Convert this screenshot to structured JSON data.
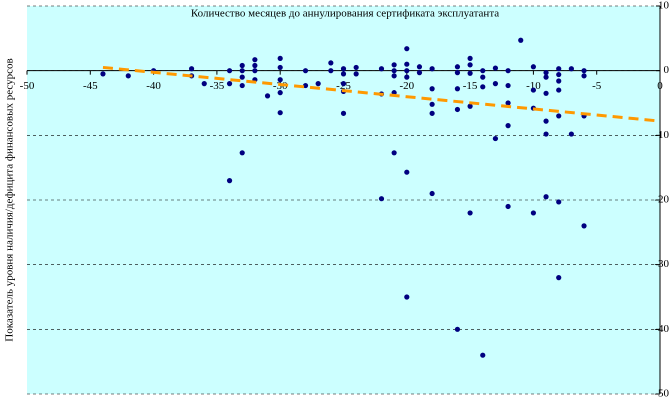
{
  "chart_data": {
    "type": "scatter",
    "title": "Количество месяцев до аннулирования сертификата эксплуатанта",
    "y_label": "Показатель уровня наличия/дефицита финансовых ресурсов",
    "color": "#000080",
    "background": "#ccffff",
    "grid": true,
    "xlim": [
      -50,
      0
    ],
    "xticks": [
      -50,
      -45,
      -40,
      -35,
      -30,
      -25,
      -20,
      -15,
      -10,
      -5,
      0
    ],
    "ylim": [
      -50,
      10
    ],
    "yticks": [
      10,
      0,
      -10,
      -20,
      -30,
      -40,
      -50
    ],
    "x": [
      -44,
      -42,
      -40,
      -37,
      -37,
      -36,
      -34,
      -34,
      -34,
      -33,
      -33,
      -33,
      -33,
      -33,
      -32,
      -32,
      -32,
      -32,
      -31,
      -30,
      -30,
      -30,
      -30,
      -30,
      -28,
      -28,
      -27,
      -26,
      -26,
      -25,
      -25,
      -25,
      -25,
      -25,
      -24,
      -24,
      -22,
      -22,
      -22,
      -21,
      -21,
      -21,
      -21,
      -21,
      -20,
      -20,
      -20,
      -20,
      -20,
      -20,
      -19,
      -19,
      -18,
      -18,
      -18,
      -18,
      -18,
      -16,
      -16,
      -16,
      -16,
      -16,
      -15,
      -15,
      -15,
      -15,
      -15,
      -14,
      -14,
      -14,
      -14,
      -13,
      -13,
      -13,
      -12,
      -12,
      -12,
      -12,
      -12,
      -11,
      -10,
      -10,
      -10,
      -10,
      -9,
      -9,
      -9,
      -9,
      -9,
      -9,
      -8,
      -8,
      -8,
      -8,
      -8,
      -8,
      -8,
      -7,
      -7,
      -6,
      -6,
      -6,
      -6
    ],
    "y": [
      -0.5,
      -0.8,
      0,
      0.3,
      -0.8,
      -2,
      0,
      -2,
      -17,
      0.8,
      0,
      -1,
      -2.3,
      -12.7,
      1.7,
      0.8,
      0,
      -1.4,
      -3.9,
      1.9,
      0.5,
      -1.4,
      -3.4,
      -6.5,
      0,
      -2.3,
      -2,
      1.2,
      0,
      0.3,
      -0.5,
      -2,
      -3.2,
      -6.6,
      0.5,
      -0.5,
      0.3,
      -3.6,
      -19.8,
      0.9,
      0,
      -0.8,
      -3.4,
      -12.7,
      3.4,
      1,
      0,
      -1,
      -15.7,
      -35,
      0.6,
      -0.3,
      0.3,
      -2.8,
      -5.2,
      -6.6,
      -19,
      0.6,
      -0.3,
      -2.8,
      -6,
      -40,
      1.9,
      0.9,
      -0.4,
      -5.5,
      -22,
      0,
      -1,
      -2.5,
      -44,
      0.4,
      -2,
      -10.5,
      0,
      -2.3,
      -5,
      -8.5,
      -21,
      4.7,
      0.6,
      -3,
      -5.8,
      -22,
      -0.3,
      -1,
      -3.5,
      -7.8,
      -9.8,
      -19.5,
      0.3,
      -0.6,
      -1.6,
      -3,
      -7,
      -20.3,
      -32,
      0.3,
      -9.8,
      0,
      -0.8,
      -7,
      -24
    ],
    "trendline": {
      "x": [
        -44,
        0
      ],
      "y": [
        0.5,
        -7.8
      ],
      "color": "#ff9900"
    }
  }
}
